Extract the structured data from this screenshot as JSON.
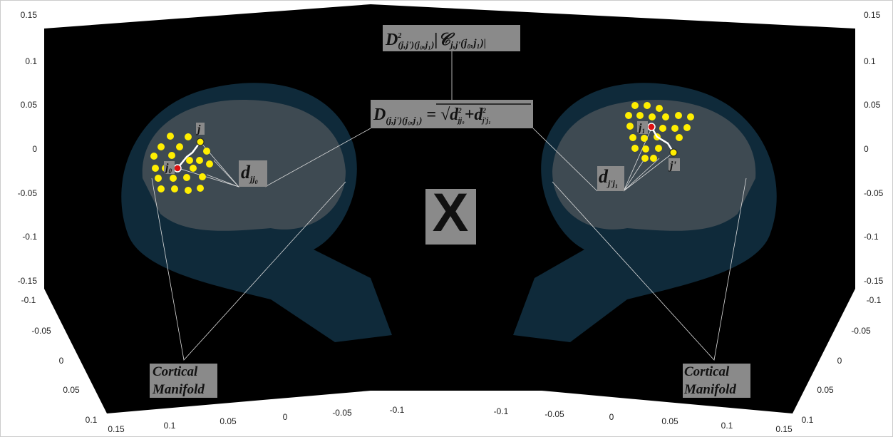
{
  "left_axes": {
    "z_ticks": [
      "0.15",
      "0.1",
      "0.05",
      "0",
      "-0.05",
      "-0.1",
      "-0.15"
    ],
    "depth_ticks": [
      "-0.1",
      "-0.05",
      "0",
      "0.05",
      "0.1",
      "0.15"
    ],
    "x_ticks": [
      "0.1",
      "0.05",
      "0",
      "-0.05",
      "-0.1"
    ]
  },
  "right_axes": {
    "z_ticks": [
      "0.15",
      "0.1",
      "0.05",
      "0",
      "-0.05",
      "-0.1",
      "-0.15"
    ],
    "x_ticks": [
      "-0.1",
      "-0.05",
      "0",
      "0.05",
      "0.1",
      "0.15"
    ],
    "depth_ticks": [
      "-0.1",
      "-0.05",
      "0",
      "0.05",
      "0.1"
    ]
  },
  "labels": {
    "left_manifold": [
      "Cortical",
      "Manifold"
    ],
    "right_manifold": [
      "Cortical",
      "Manifold"
    ],
    "operator": "X",
    "left_point": "j",
    "left_origin": {
      "base": "j",
      "sub": "0"
    },
    "right_point": "j'",
    "right_origin": {
      "base": "j",
      "sub": "1"
    },
    "left_distance": {
      "base": "d",
      "sub": "jj",
      "subsub": "0"
    },
    "right_distance": {
      "base": "d",
      "sub": "j'j",
      "subsub": "1"
    },
    "formula_top": {
      "base": "D",
      "sup": "2",
      "sub": "(j,j')(j₀,j₁)",
      "c": "|𝒞",
      "csub": "j,j'",
      "carg": "(j₀,j₁)|"
    },
    "formula_mid": {
      "base": "D",
      "sub": "(j,j')(j₀,j₁)",
      "eq": " = √",
      "t1": "d",
      "t1sup": "2",
      "t1sub": "jj₀",
      "plus": "+",
      "t2": "d",
      "t2sup": "2",
      "t2sub": "j'j₁"
    }
  }
}
